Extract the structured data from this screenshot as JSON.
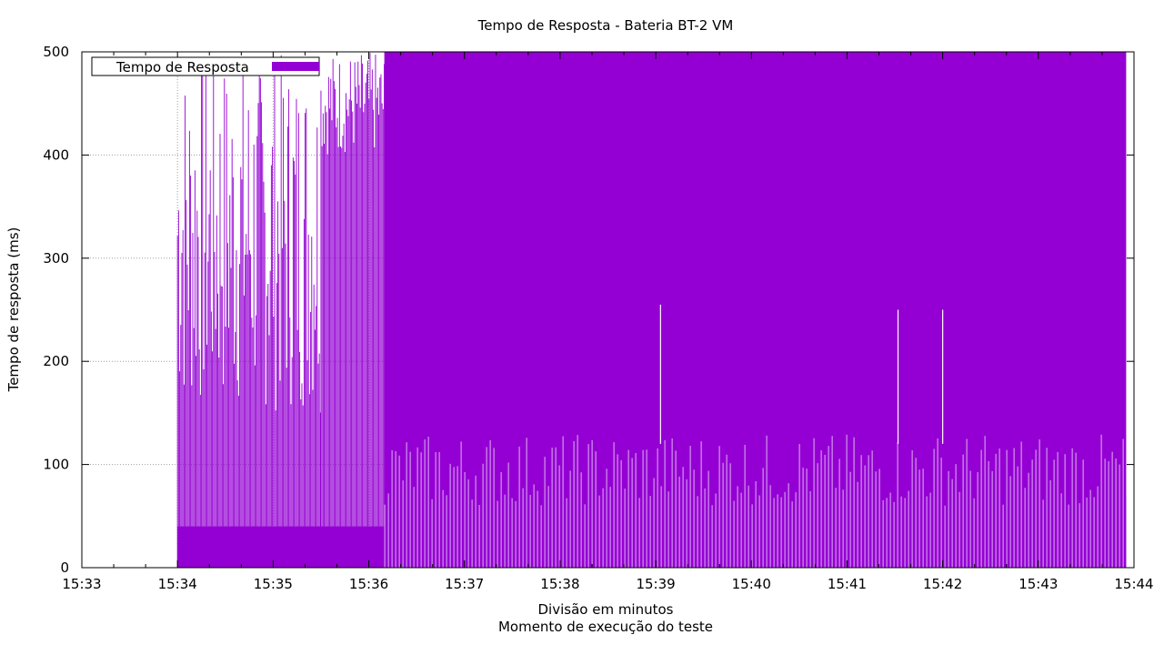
{
  "chart_data": {
    "type": "bar",
    "title": "Tempo de Resposta - Bateria BT-2 VM",
    "xlabel": "Divisão em minutos",
    "xlabel2": "Momento de execução do teste",
    "ylabel": "Tempo de resposta (ms)",
    "ylim": [
      0,
      500
    ],
    "y_ticks": [
      0,
      100,
      200,
      300,
      400,
      500
    ],
    "xlim": [
      "15:33",
      "15:44"
    ],
    "x_ticks": [
      "15:33",
      "15:34",
      "15:35",
      "15:36",
      "15:37",
      "15:38",
      "15:39",
      "15:40",
      "15:41",
      "15:42",
      "15:43",
      "15:44"
    ],
    "grid": true,
    "legend_position": "top-left",
    "series": [
      {
        "name": "Tempo de Resposta",
        "color": "#9400D3",
        "segments": [
          {
            "start": "15:34:00",
            "end": "15:35:30",
            "baseline_ms": 40,
            "peaks_ms": [
              150,
              500
            ]
          },
          {
            "start": "15:35:30",
            "end": "15:36:10",
            "baseline_ms": 40,
            "peaks_ms": [
              400,
              500
            ]
          },
          {
            "start": "15:36:10",
            "end": "15:43:55",
            "baseline_ms": 70,
            "peaks_ms": [
              500,
              500
            ]
          }
        ],
        "notable_dips": [
          {
            "time": "15:39:03",
            "value_ms": 255
          },
          {
            "time": "15:41:32",
            "value_ms": 250
          },
          {
            "time": "15:42:00",
            "value_ms": 250
          }
        ]
      }
    ]
  }
}
